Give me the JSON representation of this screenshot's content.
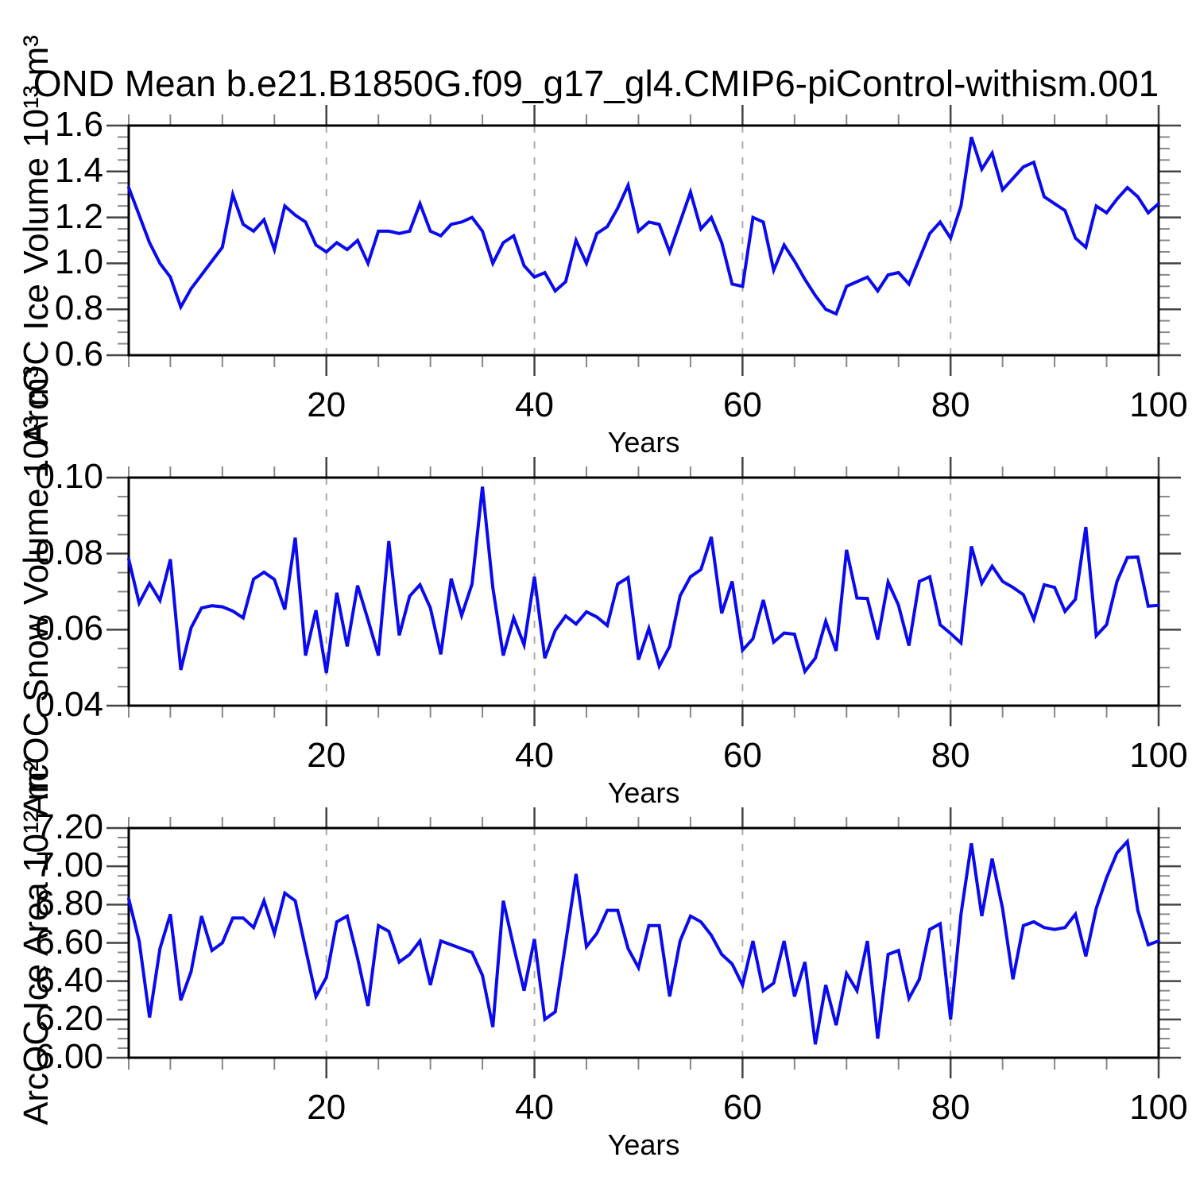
{
  "title": "OND Mean b.e21.B1850G.f09_g17_gl4.CMIP6-piControl-withism.001",
  "chart_data": {
    "type": "line",
    "x_label": "Years",
    "x_start": 1,
    "x_end": 100,
    "x_major_ticks": [
      20,
      40,
      60,
      80,
      100
    ],
    "x_minor_step": 5,
    "x_gridlines": [
      20,
      40,
      60,
      80
    ],
    "line_color": "#0a0af0",
    "gridline_color": "#aaaaaa",
    "axis_color": "#000000",
    "major_tick_color": "#444444",
    "minor_tick_color": "#888888",
    "legend": "none",
    "grid": "dashed vertical at x major ticks 20/40/60/80",
    "panels": [
      {
        "ylabel": "ArcOC Ice Volume 10¹³ m³",
        "ylim": [
          0.6,
          1.6
        ],
        "ytick_labels": [
          "0.6",
          "0.8",
          "1.0",
          "1.2",
          "1.4",
          "1.6"
        ],
        "y_minor_step": 0.05,
        "values": [
          1.33,
          1.21,
          1.09,
          1.0,
          0.94,
          0.81,
          0.89,
          0.95,
          1.01,
          1.07,
          1.3,
          1.17,
          1.14,
          1.19,
          1.06,
          1.25,
          1.21,
          1.18,
          1.08,
          1.05,
          1.09,
          1.06,
          1.1,
          1.0,
          1.14,
          1.14,
          1.13,
          1.14,
          1.26,
          1.14,
          1.12,
          1.17,
          1.18,
          1.2,
          1.14,
          1.0,
          1.09,
          1.12,
          0.99,
          0.94,
          0.96,
          0.88,
          0.92,
          1.1,
          1.0,
          1.13,
          1.16,
          1.24,
          1.34,
          1.14,
          1.18,
          1.17,
          1.05,
          1.18,
          1.31,
          1.15,
          1.2,
          1.09,
          0.91,
          0.9,
          1.2,
          1.18,
          0.97,
          1.08,
          1.01,
          0.93,
          0.86,
          0.8,
          0.78,
          0.9,
          0.92,
          0.94,
          0.88,
          0.95,
          0.96,
          0.91,
          1.02,
          1.13,
          1.18,
          1.11,
          1.25,
          1.55,
          1.41,
          1.48,
          1.32,
          1.37,
          1.42,
          1.44,
          1.29,
          1.26,
          1.23,
          1.11,
          1.07,
          1.25,
          1.22,
          1.28,
          1.33,
          1.29,
          1.22,
          1.26
        ]
      },
      {
        "ylabel": "ArcOC Snow Volume 10¹³ m³",
        "ylim": [
          0.04,
          0.1
        ],
        "ytick_labels": [
          "0.04",
          "0.06",
          "0.08",
          "0.10"
        ],
        "y_minor_step": 0.005,
        "values": [
          0.0785,
          0.067,
          0.0722,
          0.0677,
          0.0785,
          0.0494,
          0.0605,
          0.0657,
          0.0663,
          0.066,
          0.0649,
          0.0631,
          0.0733,
          0.0751,
          0.0732,
          0.0653,
          0.0842,
          0.0532,
          0.0651,
          0.0486,
          0.0697,
          0.0556,
          0.0716,
          0.0626,
          0.0532,
          0.0833,
          0.0585,
          0.0688,
          0.0718,
          0.0657,
          0.0535,
          0.0734,
          0.0637,
          0.072,
          0.0976,
          0.071,
          0.0532,
          0.0631,
          0.056,
          0.0739,
          0.0525,
          0.0598,
          0.0636,
          0.0615,
          0.0647,
          0.0633,
          0.0611,
          0.072,
          0.0737,
          0.0521,
          0.0603,
          0.0504,
          0.0556,
          0.0689,
          0.0739,
          0.0758,
          0.0844,
          0.0643,
          0.0727,
          0.0546,
          0.0576,
          0.0678,
          0.0567,
          0.0591,
          0.0588,
          0.049,
          0.0525,
          0.0622,
          0.0544,
          0.081,
          0.0683,
          0.0682,
          0.0574,
          0.0725,
          0.0664,
          0.0558,
          0.0727,
          0.0739,
          0.0613,
          0.059,
          0.0565,
          0.0819,
          0.0722,
          0.0767,
          0.0727,
          0.0711,
          0.0692,
          0.0627,
          0.0718,
          0.0711,
          0.0648,
          0.068,
          0.087,
          0.0584,
          0.0613,
          0.0727,
          0.079,
          0.0791,
          0.0662,
          0.0664
        ]
      },
      {
        "ylabel": "ArcOC Ice Area 10¹² m²",
        "ylim": [
          6.0,
          7.2
        ],
        "ytick_labels": [
          "6.00",
          "6.20",
          "6.40",
          "6.60",
          "6.80",
          "7.00",
          "7.20"
        ],
        "y_minor_step": 0.05,
        "values": [
          6.83,
          6.61,
          6.21,
          6.57,
          6.75,
          6.3,
          6.45,
          6.74,
          6.56,
          6.6,
          6.73,
          6.73,
          6.68,
          6.82,
          6.65,
          6.86,
          6.82,
          6.57,
          6.32,
          6.42,
          6.71,
          6.74,
          6.52,
          6.27,
          6.69,
          6.66,
          6.5,
          6.54,
          6.61,
          6.38,
          6.61,
          6.59,
          6.57,
          6.55,
          6.43,
          6.16,
          6.82,
          6.58,
          6.35,
          6.62,
          6.2,
          6.24,
          6.6,
          6.96,
          6.58,
          6.65,
          6.77,
          6.77,
          6.57,
          6.47,
          6.69,
          6.69,
          6.32,
          6.61,
          6.74,
          6.71,
          6.64,
          6.54,
          6.49,
          6.38,
          6.61,
          6.35,
          6.39,
          6.61,
          6.32,
          6.5,
          6.07,
          6.38,
          6.17,
          6.44,
          6.35,
          6.61,
          6.1,
          6.54,
          6.56,
          6.31,
          6.41,
          6.67,
          6.7,
          6.2,
          6.75,
          7.12,
          6.74,
          7.04,
          6.78,
          6.41,
          6.69,
          6.71,
          6.68,
          6.67,
          6.68,
          6.75,
          6.53,
          6.78,
          6.94,
          7.07,
          7.13,
          6.77,
          6.59,
          6.61
        ]
      }
    ]
  }
}
